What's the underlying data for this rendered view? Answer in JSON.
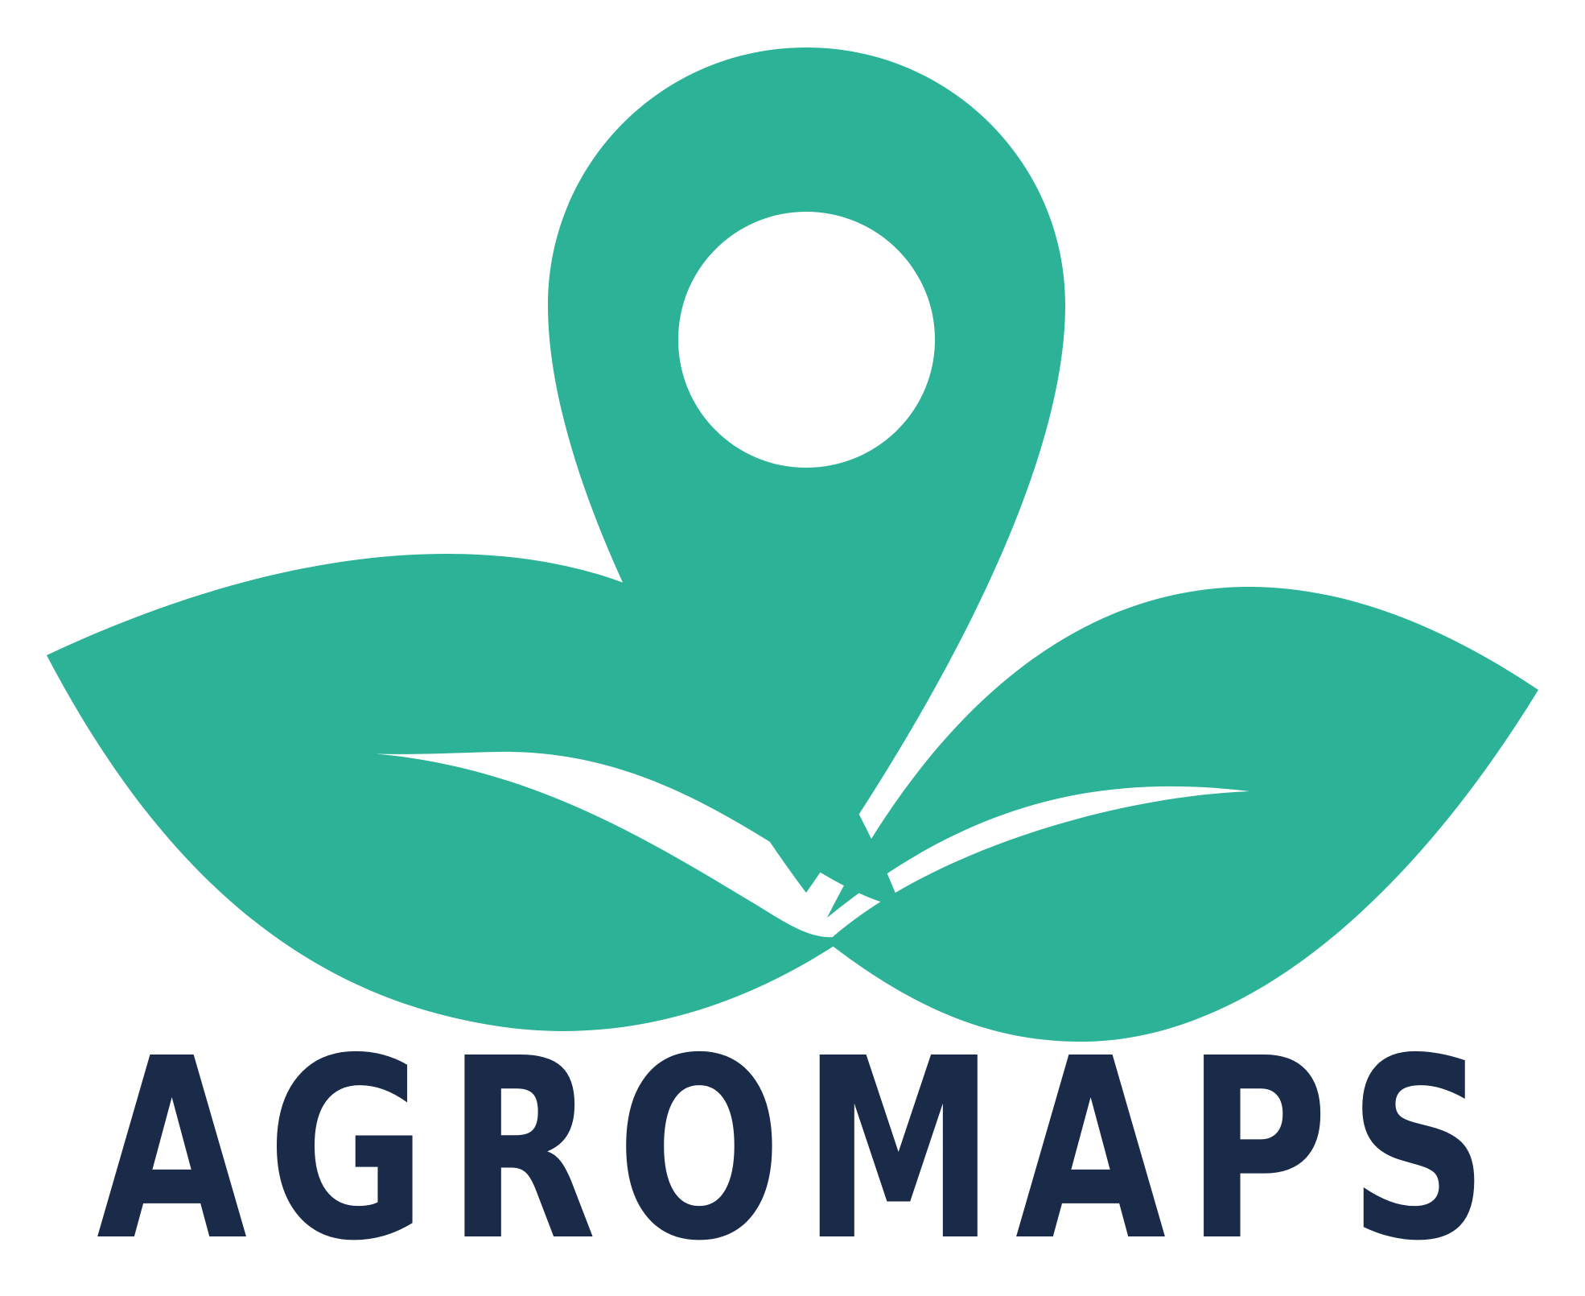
{
  "brand": {
    "name": "AGROMAPS",
    "letters": [
      "A",
      "G",
      "R",
      "O",
      "M",
      "A",
      "P",
      "S"
    ]
  },
  "colors": {
    "primary_green": "#2bb297",
    "text_navy": "#1a2b4a",
    "background": "#ffffff"
  },
  "icons": {
    "pin": "location-pin-icon",
    "left_leaf": "left-leaf-icon",
    "right_leaf": "right-leaf-icon"
  }
}
